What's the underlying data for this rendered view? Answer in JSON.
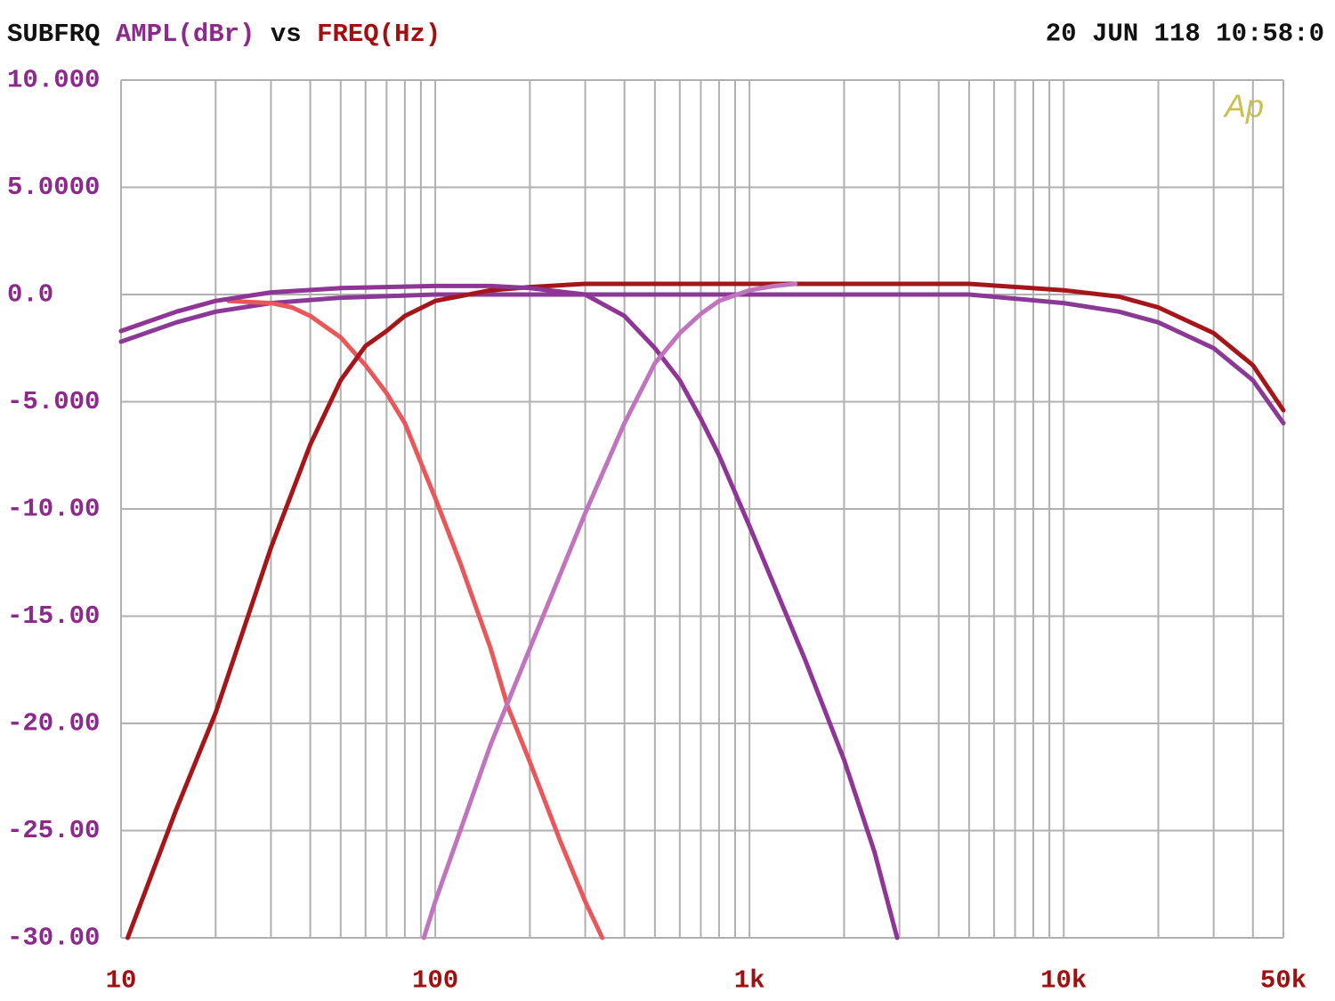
{
  "chart_data": {
    "type": "line",
    "title": [
      "SUBFRQ",
      "AMPL(dBr)",
      "vs",
      "FREQ(Hz)"
    ],
    "timestamp": "20 JUN 118 10:58:0",
    "logo": "Ap",
    "xscale": "log",
    "xlim": [
      10,
      50000
    ],
    "ylim": [
      -30,
      10
    ],
    "xticks": [
      10,
      100,
      {
        "value": 1000,
        "label": "1k"
      },
      {
        "value": 10000,
        "label": "10k"
      },
      {
        "value": 50000,
        "label": "50k"
      }
    ],
    "xminor": [
      20,
      30,
      40,
      50,
      60,
      70,
      80,
      90,
      200,
      300,
      400,
      500,
      600,
      700,
      800,
      900,
      2000,
      3000,
      4000,
      5000,
      6000,
      7000,
      8000,
      9000,
      20000,
      30000,
      40000
    ],
    "yticks": [
      {
        "value": 10,
        "label": "10.000"
      },
      {
        "value": 5,
        "label": "5.0000"
      },
      {
        "value": 0,
        "label": "0.0"
      },
      {
        "value": -5,
        "label": "-5.000"
      },
      {
        "value": -10,
        "label": "-10.00"
      },
      {
        "value": -15,
        "label": "-15.00"
      },
      {
        "value": -20,
        "label": "-20.00"
      },
      {
        "value": -25,
        "label": "-25.00"
      },
      {
        "value": -30,
        "label": "-30.00"
      }
    ],
    "grid": true,
    "series": [
      {
        "color": "#8a3a96",
        "x": [
          10,
          15,
          20,
          30,
          50,
          100,
          200,
          500,
          1000,
          2000,
          5000,
          10000,
          15000,
          20000,
          30000,
          40000,
          50000
        ],
        "values": [
          -2.2,
          -1.3,
          -0.8,
          -0.4,
          -0.15,
          0,
          0,
          0,
          0,
          0,
          0,
          -0.4,
          -0.8,
          -1.3,
          -2.5,
          -4.0,
          -6.0
        ]
      },
      {
        "color": "#e8575a",
        "x": [
          22,
          30,
          35,
          40,
          50,
          60,
          70,
          80,
          100,
          120,
          150,
          170,
          200,
          250,
          300,
          340
        ],
        "values": [
          -0.3,
          -0.4,
          -0.6,
          -1.0,
          -2.0,
          -3.3,
          -4.6,
          -6.0,
          -9.5,
          -12.5,
          -16.5,
          -19.2,
          -21.8,
          -25.5,
          -28.3,
          -30
        ]
      },
      {
        "color": "#a5161a",
        "x": [
          10.5,
          15,
          20,
          30,
          40,
          50,
          60,
          70,
          80,
          100,
          150,
          200,
          300,
          500,
          1000,
          2000,
          5000,
          10000,
          15000,
          20000,
          30000,
          40000,
          50000
        ],
        "values": [
          -30,
          -24,
          -19.5,
          -11.8,
          -7,
          -4.0,
          -2.4,
          -1.7,
          -1,
          -0.3,
          0.2,
          0.35,
          0.5,
          0.5,
          0.5,
          0.5,
          0.5,
          0.2,
          -0.1,
          -0.6,
          -1.8,
          -3.3,
          -5.4
        ]
      },
      {
        "color": "#8e3595",
        "x": [
          10,
          15,
          20,
          30,
          50,
          100,
          150,
          200,
          300,
          400,
          500,
          600,
          700,
          800,
          1000,
          1500,
          2000,
          2500,
          2950
        ],
        "values": [
          -1.7,
          -0.8,
          -0.3,
          0.1,
          0.3,
          0.4,
          0.4,
          0.3,
          0,
          -1.0,
          -2.5,
          -4.0,
          -5.8,
          -7.5,
          -10.8,
          -17,
          -21.7,
          -26,
          -30
        ]
      },
      {
        "color": "#c074bd",
        "x": [
          92,
          100,
          150,
          200,
          300,
          400,
          500,
          600,
          700,
          800,
          1000,
          1200,
          1400
        ],
        "values": [
          -30,
          -28.3,
          -21,
          -16.5,
          -10.2,
          -6,
          -3.2,
          -1.8,
          -0.9,
          -0.3,
          0.2,
          0.4,
          0.5
        ]
      }
    ]
  }
}
